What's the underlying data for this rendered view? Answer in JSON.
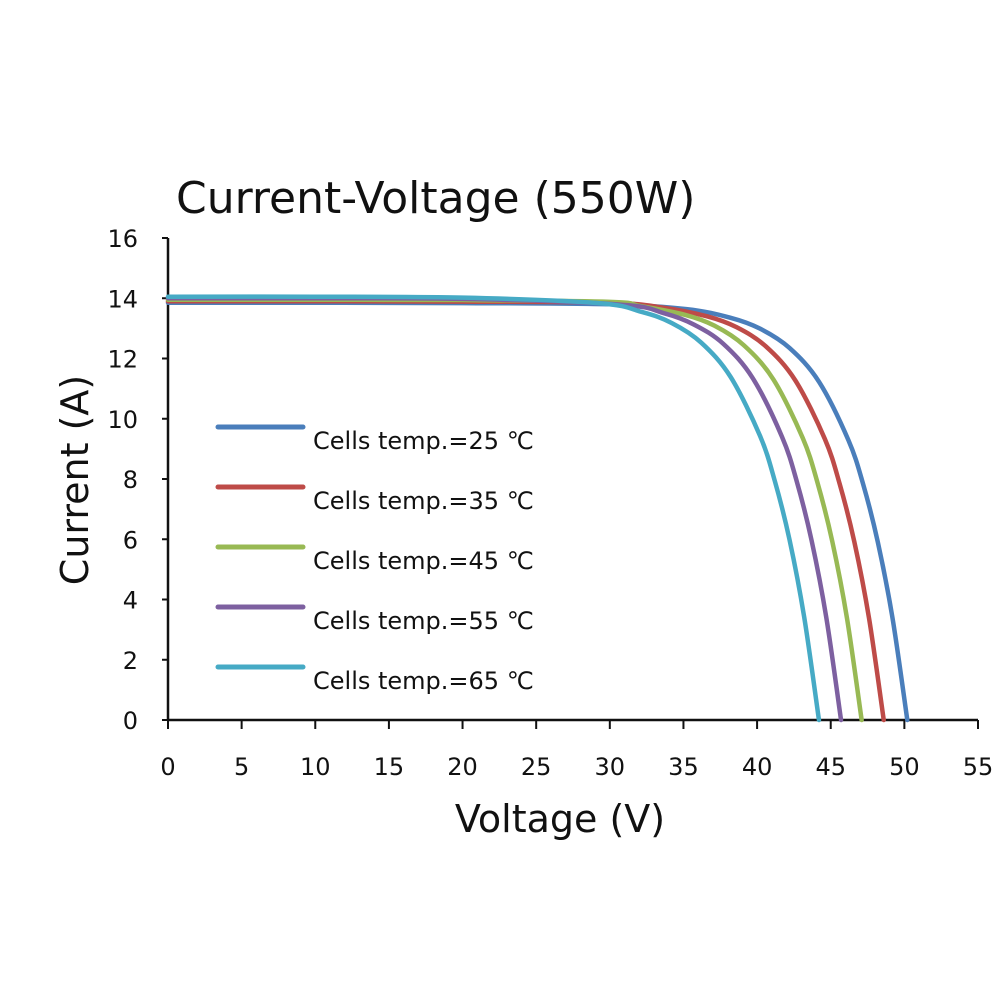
{
  "chart_data": {
    "type": "line",
    "title": "Current-Voltage  (550W)",
    "xlabel": "Voltage (V)",
    "ylabel": "Current (A)",
    "xlim": [
      0,
      55
    ],
    "ylim": [
      0,
      16
    ],
    "xticks": [
      0,
      5,
      10,
      15,
      20,
      25,
      30,
      35,
      40,
      45,
      50,
      55
    ],
    "yticks": [
      0,
      2,
      4,
      6,
      8,
      10,
      12,
      14,
      16
    ],
    "grid": false,
    "legend_position": "center-left",
    "series": [
      {
        "name": "Cells temp.=25 ℃",
        "color": "#4a7ebb",
        "x": [
          0,
          10,
          20,
          30,
          35.2,
          38.2,
          40.2,
          42.2,
          44.2,
          46.2,
          47.2,
          48.2,
          49.2,
          50.2
        ],
        "y": [
          13.85,
          13.85,
          13.84,
          13.8,
          13.64,
          13.35,
          12.99,
          12.35,
          11.23,
          9.29,
          7.83,
          5.9,
          3.37,
          0
        ]
      },
      {
        "name": "Cells temp.=35 ℃",
        "color": "#be4b48",
        "x": [
          0,
          10,
          20,
          30,
          33.6,
          36.6,
          38.6,
          40.6,
          42.6,
          44.6,
          45.6,
          46.6,
          47.6,
          48.6
        ],
        "y": [
          13.9,
          13.9,
          13.89,
          13.85,
          13.69,
          13.4,
          13.04,
          12.4,
          11.27,
          9.33,
          7.85,
          5.92,
          3.38,
          0
        ]
      },
      {
        "name": "Cells temp.=45 ℃",
        "color": "#98b954",
        "x": [
          0,
          10,
          20,
          30,
          32.1,
          35.1,
          37.1,
          39.1,
          41.1,
          43.1,
          44.1,
          45.1,
          46.1,
          47.1
        ],
        "y": [
          13.95,
          13.95,
          13.94,
          13.88,
          13.74,
          13.45,
          13.09,
          12.44,
          11.31,
          9.36,
          7.88,
          5.94,
          3.39,
          0
        ]
      },
      {
        "name": "Cells temp.=55 ℃",
        "color": "#7d60a0",
        "x": [
          0,
          10,
          20,
          30.7,
          33.7,
          35.7,
          37.7,
          39.7,
          41.7,
          42.7,
          43.7,
          44.7,
          45.7
        ],
        "y": [
          14.0,
          14.0,
          13.98,
          13.79,
          13.5,
          13.13,
          12.49,
          11.35,
          9.39,
          7.91,
          5.96,
          3.4,
          0
        ]
      },
      {
        "name": "Cells temp.=65 ℃",
        "color": "#46aac5",
        "x": [
          0,
          10,
          20,
          29.2,
          32.2,
          34.2,
          36.2,
          38.2,
          40.2,
          41.2,
          42.2,
          43.2,
          44.2
        ],
        "y": [
          14.05,
          14.05,
          14.02,
          13.84,
          13.54,
          13.18,
          12.53,
          11.39,
          9.43,
          7.94,
          5.99,
          3.41,
          0
        ]
      }
    ]
  }
}
